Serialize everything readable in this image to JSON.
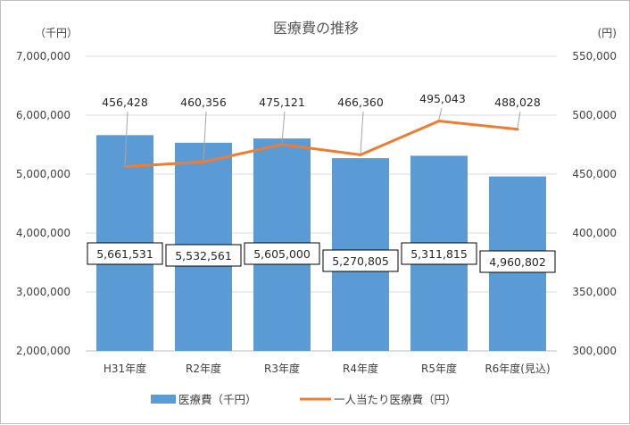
{
  "chart_data": {
    "type": "bar",
    "title": "医療費の推移",
    "y_left_unit": "（千円）",
    "y_right_unit": "(円)",
    "categories": [
      "H31年度",
      "R2年度",
      "R3年度",
      "R4年度",
      "R5年度",
      "R6年度(見込)"
    ],
    "series": [
      {
        "name": "医療費（千円）",
        "type": "bar",
        "axis": "left",
        "color": "#5b9bd5",
        "values": [
          5661531,
          5532561,
          5605000,
          5270805,
          5311815,
          4960802
        ],
        "labels": [
          "5,661,531",
          "5,532,561",
          "5,605,000",
          "5,270,805",
          "5,311,815",
          "4,960,802"
        ]
      },
      {
        "name": "一人当たり医療費（円）",
        "type": "line",
        "axis": "right",
        "color": "#ed7d31",
        "values": [
          456428,
          460356,
          475121,
          466360,
          495043,
          488028
        ],
        "labels": [
          "456,428",
          "460,356",
          "475,121",
          "466,360",
          "495,043",
          "488,028"
        ]
      }
    ],
    "y_left": {
      "min": 2000000,
      "max": 7000000,
      "ticks": [
        "2,000,000",
        "3,000,000",
        "4,000,000",
        "5,000,000",
        "6,000,000",
        "7,000,000"
      ]
    },
    "y_right": {
      "min": 300000,
      "max": 550000,
      "ticks": [
        "300,000",
        "350,000",
        "400,000",
        "450,000",
        "500,000",
        "550,000"
      ]
    },
    "grid": true,
    "legend": "bottom"
  }
}
